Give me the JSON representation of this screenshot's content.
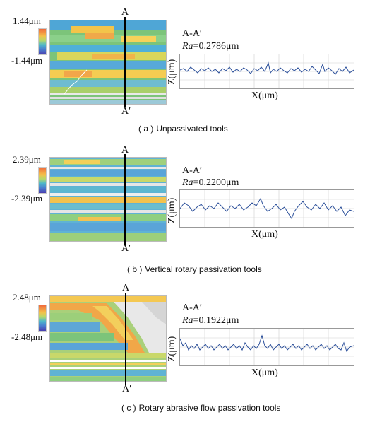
{
  "panels": [
    {
      "id": "a",
      "scale_top": "1.44μm",
      "scale_bottom": "-1.44μm",
      "label_a": "A",
      "label_aprime": "A′",
      "profile_title": "A-A′",
      "ra_symbol": "Ra",
      "ra_value": "=0.2786μm",
      "y_axis_label": "Z(μm)",
      "x_axis_label": "X(μm)",
      "caption_tag": "( a )",
      "caption_text": "Unpassivated tools"
    },
    {
      "id": "b",
      "scale_top": "2.39μm",
      "scale_bottom": "-2.39μm",
      "label_a": "A",
      "label_aprime": "A′",
      "profile_title": "A-A′",
      "ra_symbol": "Ra",
      "ra_value": "=0.2200μm",
      "y_axis_label": "Z(μm)",
      "x_axis_label": "X(μm)",
      "caption_tag": "( b )",
      "caption_text": "Vertical rotary passivation tools"
    },
    {
      "id": "c",
      "scale_top": "2.48μm",
      "scale_bottom": "-2.48μm",
      "label_a": "A",
      "label_aprime": "A′",
      "profile_title": "A-A′",
      "ra_symbol": "Ra",
      "ra_value": "=0.1922μm",
      "y_axis_label": "Z(μm)",
      "x_axis_label": "X(μm)",
      "caption_tag": "( c )",
      "caption_text": "Rotary abrasive flow passivation tools"
    }
  ],
  "colors": {
    "profile_line": "#2b4f9a",
    "section_line": "#000000",
    "grid": "#bbbbbb"
  }
}
